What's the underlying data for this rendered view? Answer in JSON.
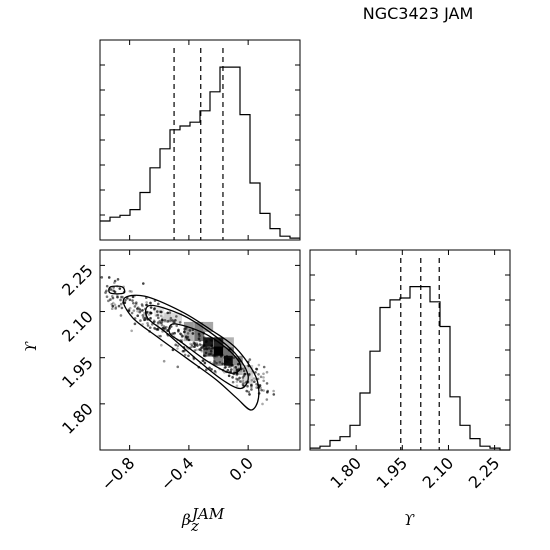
{
  "title": "NGC3423 JAM",
  "chart_data": {
    "type": "corner",
    "parameters": [
      {
        "name": "beta",
        "label": "β_z^JAM",
        "label_main": "β",
        "label_sub": "z",
        "label_sup": "JAM",
        "range": [
          -1.0,
          0.35
        ],
        "ticks": [
          -0.8,
          -0.4,
          0.0
        ],
        "tick_labels": [
          "−0.8",
          "−0.4",
          "0.0"
        ],
        "quantiles": [
          -0.5,
          -0.32,
          -0.17
        ]
      },
      {
        "name": "upsilon",
        "label": "ϒ",
        "range": [
          1.65,
          2.3
        ],
        "ticks": [
          1.8,
          1.95,
          2.1,
          2.25
        ],
        "tick_labels": [
          "1.80",
          "1.95",
          "2.10",
          "2.25"
        ],
        "quantiles": [
          1.945,
          2.01,
          2.07
        ]
      }
    ],
    "hist_beta": {
      "bin_start": -1.0,
      "bin_width": 0.0675,
      "counts": [
        0.1,
        0.12,
        0.13,
        0.16,
        0.25,
        0.38,
        0.48,
        0.58,
        0.6,
        0.62,
        0.68,
        0.78,
        0.91,
        0.91,
        0.66,
        0.3,
        0.14,
        0.06,
        0.02,
        0.01
      ]
    },
    "hist_upsilon": {
      "bin_start": 1.65,
      "bin_width": 0.0325,
      "counts": [
        0.01,
        0.02,
        0.05,
        0.07,
        0.13,
        0.3,
        0.52,
        0.75,
        0.79,
        0.8,
        0.86,
        0.86,
        0.78,
        0.65,
        0.28,
        0.13,
        0.06,
        0.02,
        0.01,
        0.0
      ]
    },
    "hist2d": {
      "cells": [
        {
          "x": -0.55,
          "y": 2.08,
          "v": 0.2
        },
        {
          "x": -0.48,
          "y": 2.08,
          "v": 0.15
        },
        {
          "x": -0.4,
          "y": 2.05,
          "v": 0.4
        },
        {
          "x": -0.33,
          "y": 2.05,
          "v": 0.5
        },
        {
          "x": -0.27,
          "y": 2.05,
          "v": 0.35
        },
        {
          "x": -0.33,
          "y": 2.02,
          "v": 0.55
        },
        {
          "x": -0.27,
          "y": 2.0,
          "v": 0.9
        },
        {
          "x": -0.2,
          "y": 2.0,
          "v": 0.85
        },
        {
          "x": -0.27,
          "y": 1.97,
          "v": 0.6
        },
        {
          "x": -0.2,
          "y": 1.97,
          "v": 1.0
        },
        {
          "x": -0.13,
          "y": 1.97,
          "v": 0.55
        },
        {
          "x": -0.13,
          "y": 1.94,
          "v": 0.95
        },
        {
          "x": -0.07,
          "y": 1.94,
          "v": 0.45
        },
        {
          "x": -0.07,
          "y": 1.91,
          "v": 0.3
        },
        {
          "x": 0.0,
          "y": 1.91,
          "v": 0.2
        },
        {
          "x": -0.4,
          "y": 2.02,
          "v": 0.3
        },
        {
          "x": -0.2,
          "y": 1.94,
          "v": 0.5
        },
        {
          "x": -0.13,
          "y": 2.0,
          "v": 0.3
        },
        {
          "x": 0.0,
          "y": 1.88,
          "v": 0.15
        },
        {
          "x": -0.6,
          "y": 2.1,
          "v": 0.1
        }
      ]
    },
    "contours": [
      {
        "level": "outer",
        "points": [
          [
            -0.84,
            2.14
          ],
          [
            -0.7,
            2.15
          ],
          [
            -0.45,
            2.1
          ],
          [
            -0.25,
            2.04
          ],
          [
            -0.08,
            1.98
          ],
          [
            0.05,
            1.89
          ],
          [
            0.07,
            1.82
          ],
          [
            0.02,
            1.78
          ],
          [
            -0.08,
            1.82
          ],
          [
            -0.22,
            1.88
          ],
          [
            -0.42,
            1.95
          ],
          [
            -0.62,
            2.02
          ],
          [
            -0.78,
            2.08
          ]
        ]
      },
      {
        "level": "middle",
        "points": [
          [
            -0.66,
            2.12
          ],
          [
            -0.45,
            2.09
          ],
          [
            -0.25,
            2.03
          ],
          [
            -0.08,
            1.96
          ],
          [
            0.0,
            1.89
          ],
          [
            -0.05,
            1.85
          ],
          [
            -0.18,
            1.88
          ],
          [
            -0.36,
            1.95
          ],
          [
            -0.55,
            2.03
          ],
          [
            -0.68,
            2.08
          ]
        ]
      },
      {
        "level": "inner",
        "points": [
          [
            -0.5,
            2.06
          ],
          [
            -0.3,
            2.03
          ],
          [
            -0.12,
            1.97
          ],
          [
            -0.05,
            1.92
          ],
          [
            -0.12,
            1.9
          ],
          [
            -0.28,
            1.94
          ],
          [
            -0.45,
            2.0
          ],
          [
            -0.53,
            2.03
          ]
        ]
      },
      {
        "level": "island",
        "points": [
          [
            -0.93,
            2.18
          ],
          [
            -0.85,
            2.18
          ],
          [
            -0.84,
            2.16
          ],
          [
            -0.93,
            2.16
          ]
        ]
      }
    ]
  }
}
